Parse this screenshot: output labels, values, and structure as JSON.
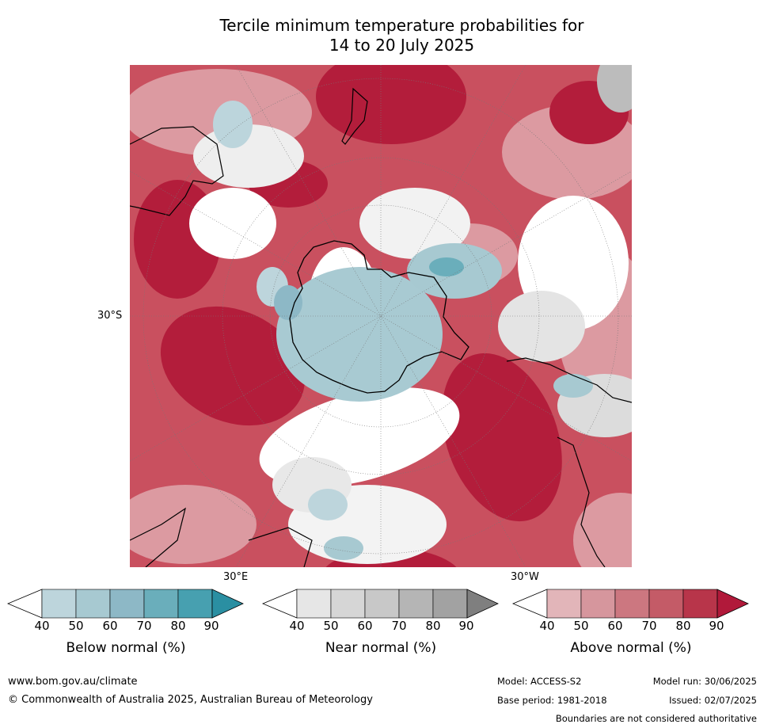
{
  "title": {
    "line1": "Tercile minimum temperature probabilities for",
    "line2": "14 to 20 July 2025"
  },
  "map": {
    "lat_label": "30°S",
    "lon_label_east": "30°E",
    "lon_label_west": "30°W"
  },
  "colorbars": [
    {
      "label": "Below normal (%)",
      "ticks": [
        "40",
        "50",
        "60",
        "70",
        "80",
        "90"
      ],
      "colors": [
        "#ffffff",
        "#bdd5dc",
        "#a7c9d1",
        "#8db8c6",
        "#6aaebb",
        "#47a0b0",
        "#2a8fa2"
      ]
    },
    {
      "label": "Near normal (%)",
      "ticks": [
        "40",
        "50",
        "60",
        "70",
        "80",
        "90"
      ],
      "colors": [
        "#ffffff",
        "#e6e6e6",
        "#d6d6d6",
        "#c8c8c8",
        "#b5b5b5",
        "#a2a2a2",
        "#7f7f7f"
      ]
    },
    {
      "label": "Above normal (%)",
      "ticks": [
        "40",
        "50",
        "60",
        "70",
        "80",
        "90"
      ],
      "colors": [
        "#ffffff",
        "#e2b5b9",
        "#d6969d",
        "#cc7780",
        "#c45b67",
        "#b8354a",
        "#b1193a"
      ]
    }
  ],
  "footer": {
    "website": "www.bom.gov.au/climate",
    "copyright": "© Commonwealth of Australia 2025, Australian Bureau of Meteorology",
    "model": "Model: ACCESS-S2",
    "base_period": "Base period: 1981-2018",
    "model_run": "Model run: 30/06/2025",
    "issued": "Issued: 02/07/2025",
    "disclaimer": "Boundaries are not considered authoritative"
  }
}
